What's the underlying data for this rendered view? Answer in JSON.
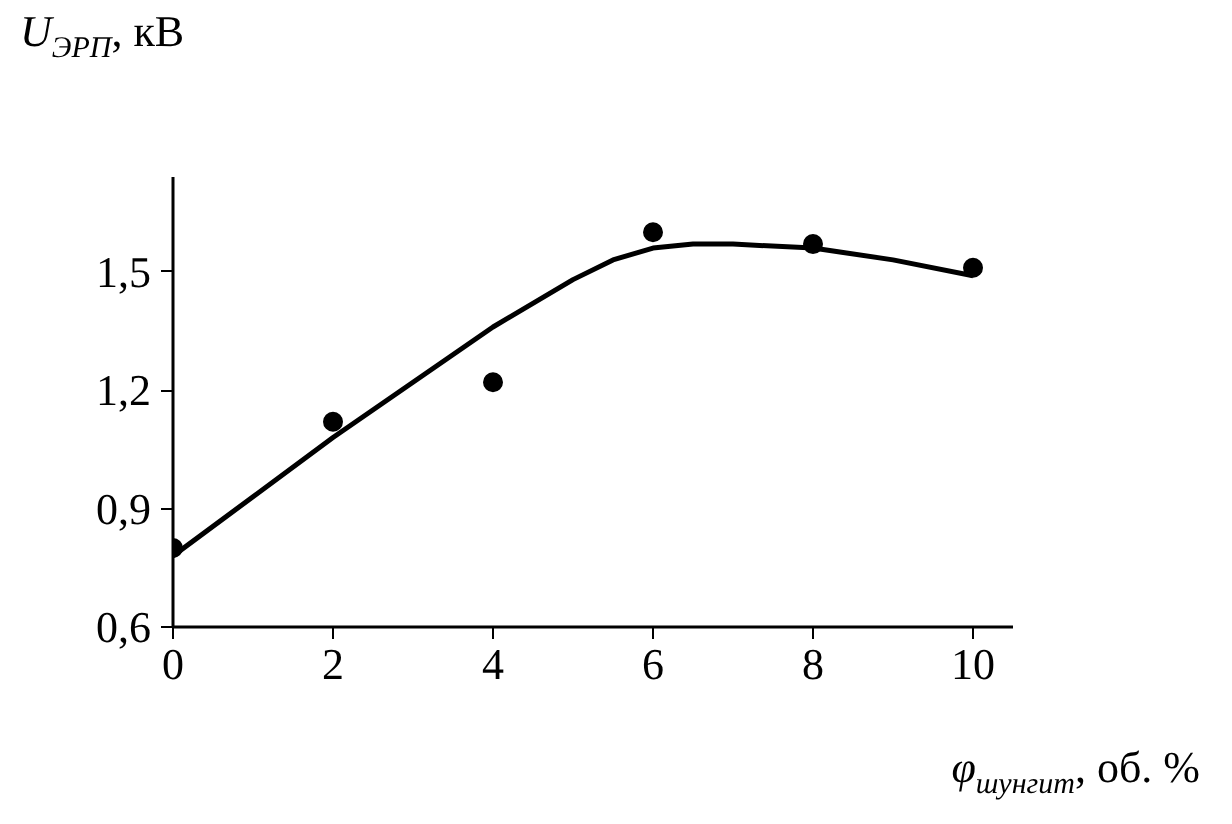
{
  "chart_data": {
    "type": "scatter",
    "xlabel": "φ$_{шунгит}$, об. %",
    "ylabel": "U$_{ЭРП}$, кВ",
    "xlim": [
      0,
      10.5
    ],
    "ylim": [
      0.6,
      1.74
    ],
    "xticks": [
      0,
      2,
      4,
      6,
      8,
      10
    ],
    "yticks": [
      {
        "value": 0.6,
        "label": "0,6"
      },
      {
        "value": 0.9,
        "label": "0,9"
      },
      {
        "value": 1.2,
        "label": "1,2"
      },
      {
        "value": 1.5,
        "label": "1,5"
      }
    ],
    "grid": false,
    "series": [
      {
        "color": "#000000",
        "marker": "circle",
        "x": [
          0,
          2,
          4,
          6,
          8,
          10
        ],
        "values": [
          0.8,
          1.12,
          1.22,
          1.6,
          1.57,
          1.51
        ]
      },
      {
        "type": "line",
        "color": "#000000",
        "line_style": "solid",
        "x": [
          0,
          1,
          2,
          3,
          4,
          5,
          5.5,
          6,
          6.5,
          7,
          8,
          9,
          10
        ],
        "values": [
          0.78,
          0.93,
          1.08,
          1.22,
          1.36,
          1.48,
          1.53,
          1.56,
          1.57,
          1.57,
          1.56,
          1.53,
          1.49
        ]
      }
    ]
  }
}
